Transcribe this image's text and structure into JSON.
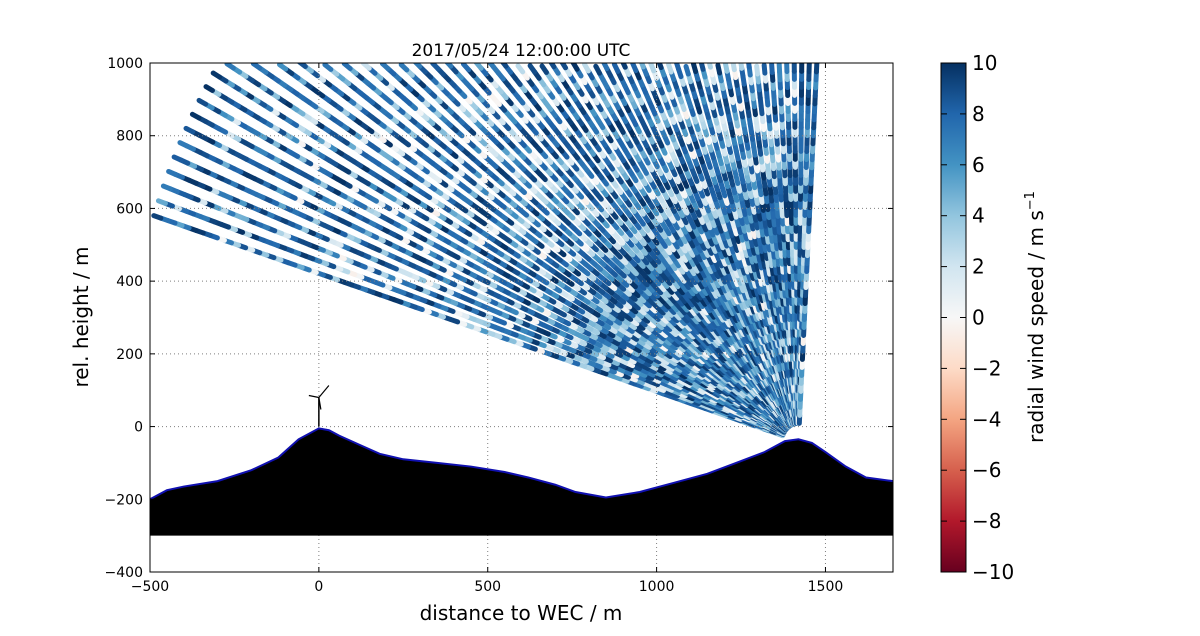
{
  "chart_data": {
    "type": "heatmap",
    "title": "2017/05/24 12:00:00 UTC",
    "xlabel": "distance to WEC / m",
    "ylabel": "rel. height / m",
    "xlim": [
      -500,
      1700
    ],
    "ylim": [
      -400,
      1000
    ],
    "xticks": [
      -500,
      0,
      500,
      1000,
      1500
    ],
    "yticks": [
      -400,
      -200,
      0,
      200,
      400,
      600,
      800,
      1000
    ],
    "grid": true,
    "scan_origin": {
      "x": 1420,
      "y": -40
    },
    "scan_max_range_m": 2000,
    "terrain_profile": {
      "x": [
        -500,
        -450,
        -400,
        -300,
        -200,
        -120,
        -60,
        0,
        30,
        60,
        120,
        180,
        250,
        350,
        450,
        550,
        620,
        700,
        760,
        850,
        950,
        1050,
        1150,
        1250,
        1320,
        1380,
        1420,
        1460,
        1500,
        1560,
        1620,
        1700
      ],
      "y": [
        -200,
        -175,
        -165,
        -150,
        -120,
        -85,
        -35,
        -5,
        -10,
        -25,
        -50,
        -75,
        -90,
        -100,
        -110,
        -125,
        -140,
        -160,
        -180,
        -195,
        -180,
        -155,
        -130,
        -95,
        -70,
        -40,
        -35,
        -45,
        -70,
        -110,
        -140,
        -150
      ]
    },
    "terrain_base_y": -300,
    "turbine": {
      "x": 0,
      "height": 80
    },
    "colorbar": {
      "label": "radial wind speed / m s",
      "label_superscript": "−1",
      "min": -10,
      "max": 10,
      "ticks": [
        -10,
        -8,
        -6,
        -4,
        -2,
        0,
        2,
        4,
        6,
        8,
        10
      ],
      "colors": [
        "#67001f",
        "#b2182b",
        "#d6604d",
        "#f4a582",
        "#fddbc7",
        "#f7f7f7",
        "#d1e5f0",
        "#92c5de",
        "#4393c3",
        "#2166ac",
        "#053061"
      ]
    },
    "colors": {
      "terrain": "#000000",
      "terrain_edge": "#1010b0",
      "grid": "#7f7f7f",
      "background": "#ffffff"
    }
  }
}
